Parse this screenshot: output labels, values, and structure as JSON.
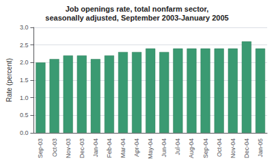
{
  "chart_data": {
    "type": "bar",
    "title": "Job openings rate, total nonfarm sector,",
    "subtitle": "seasonally adjusted, September 2003-January 2005",
    "ylabel": "Rate (percent)",
    "categories": [
      "Sep-03",
      "Oct-03",
      "Nov-03",
      "Dec-03",
      "Jan-04",
      "Feb-04",
      "Mar-04",
      "Apr-04",
      "May-04",
      "Jun-04",
      "Jul-04",
      "Aug-04",
      "Sep-04",
      "Oct-04",
      "Nov-04",
      "Dec-04",
      "Jan-05"
    ],
    "values": [
      2.0,
      2.1,
      2.2,
      2.2,
      2.1,
      2.2,
      2.3,
      2.3,
      2.4,
      2.3,
      2.4,
      2.4,
      2.4,
      2.4,
      2.4,
      2.6,
      2.4
    ],
    "color": "#3a9a72",
    "ylim": [
      0.0,
      3.0
    ],
    "yticks": [
      {
        "value": 0.0,
        "label": "0.0"
      },
      0.5,
      {
        "value": 1.0,
        "label": "1.0"
      },
      1.5,
      {
        "value": 2.0,
        "label": "2.0"
      },
      2.5,
      {
        "value": 3.0,
        "label": "3.0"
      }
    ],
    "grid": true
  }
}
